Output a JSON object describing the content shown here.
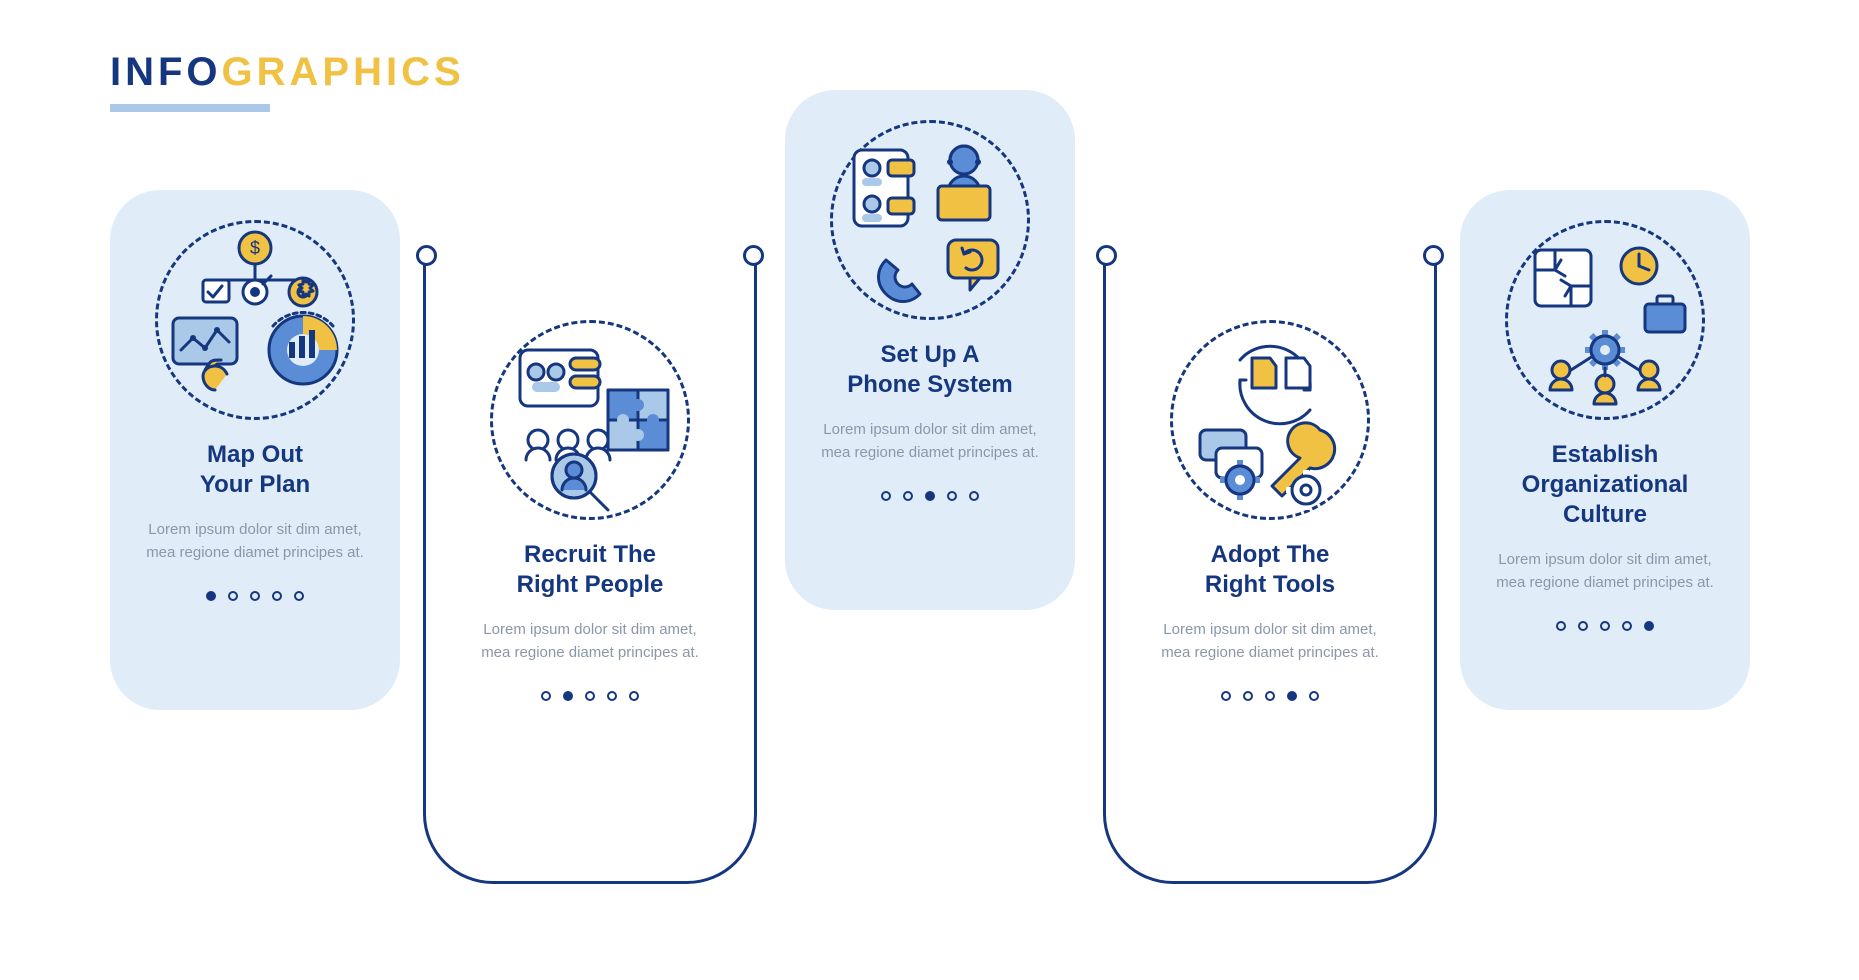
{
  "page": {
    "title_part1": "INFO",
    "title_part2": "GRAPHICS",
    "title_color1": "#15377f",
    "title_color2": "#f1c143",
    "title_fontsize": 40,
    "underline_color": "#aac8e7",
    "background_color": "#ffffff"
  },
  "style": {
    "stroke_color": "#15377f",
    "panel_bg": "#e0edf9",
    "accent_yellow": "#f1c143",
    "accent_blue": "#5b8dd6",
    "accent_lightblue": "#aac8e7",
    "body_text_color": "#8a97a8",
    "heading_fontsize": 24,
    "body_fontsize": 15,
    "panel_radius": 50,
    "outer_frame_radius": 70,
    "dashed_circle_diameter": 200,
    "dot_count": 5
  },
  "cards": [
    {
      "id": "map-out-plan",
      "title": "Map Out\nYour Plan",
      "body": "Lorem ipsum dolor sit dim amet, mea regione diamet principes at.",
      "framed": false,
      "active_dot_index": 0,
      "icon": "planning-icon"
    },
    {
      "id": "recruit-people",
      "title": "Recruit The\nRight People",
      "body": "Lorem ipsum dolor sit dim amet, mea regione diamet principes at.",
      "framed": true,
      "active_dot_index": 1,
      "icon": "recruit-icon"
    },
    {
      "id": "phone-system",
      "title": "Set Up A\nPhone System",
      "body": "Lorem ipsum dolor sit dim amet, mea regione diamet principes at.",
      "framed": false,
      "active_dot_index": 2,
      "icon": "phone-system-icon"
    },
    {
      "id": "adopt-tools",
      "title": "Adopt The\nRight Tools",
      "body": "Lorem ipsum dolor sit dim amet, mea regione diamet principes at.",
      "framed": true,
      "active_dot_index": 3,
      "icon": "tools-icon"
    },
    {
      "id": "org-culture",
      "title": "Establish\nOrganizational\nCulture",
      "body": "Lorem ipsum dolor sit dim amet, mea regione diamet principes at.",
      "framed": false,
      "active_dot_index": 4,
      "icon": "culture-icon"
    }
  ]
}
